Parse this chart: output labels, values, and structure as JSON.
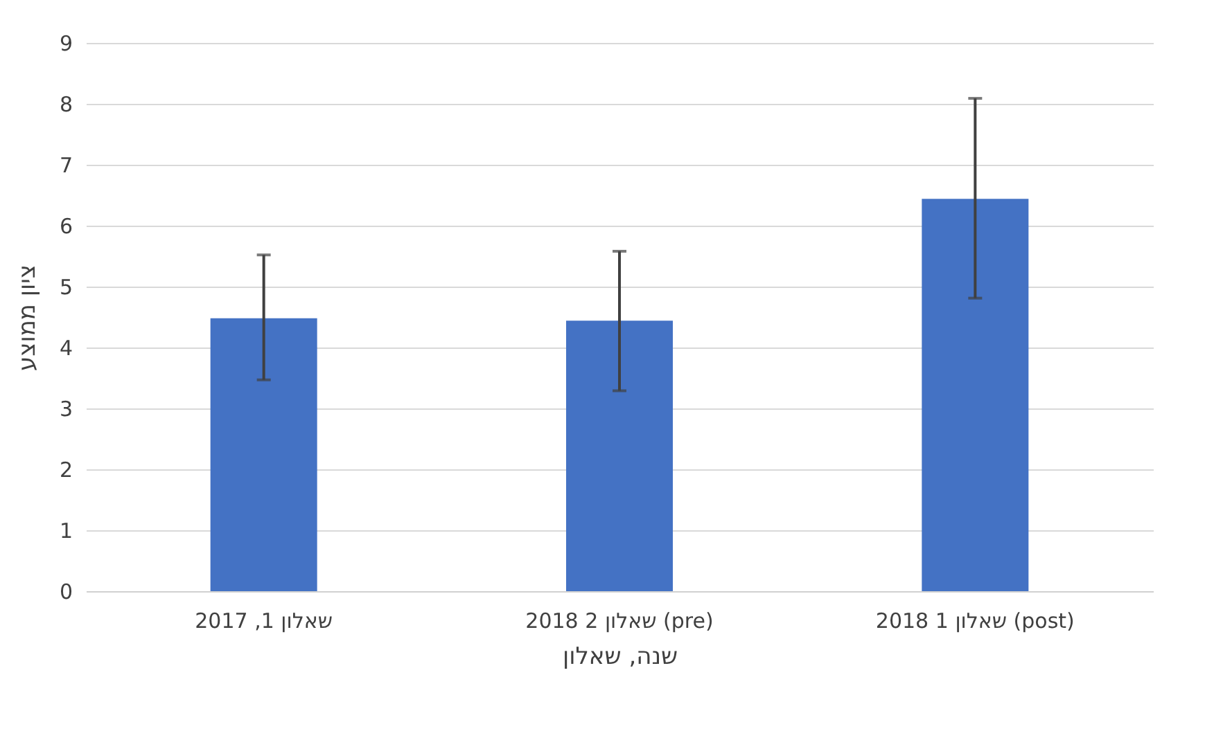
{
  "chart_data": {
    "type": "bar",
    "xlabel": "שנה, שאלון",
    "ylabel": "ציון ממוצע",
    "categories": [
      "שאלון 1, 2017",
      "שאלון 2 2018 (pre)",
      "שאלון 1 2018 (post)"
    ],
    "values": [
      4.48,
      4.44,
      6.44
    ],
    "errors": [
      [
        3.47,
        5.52
      ],
      [
        3.29,
        5.58
      ],
      [
        4.81,
        8.09
      ]
    ],
    "color": "#4472c4",
    "ylim": [
      0,
      9
    ],
    "yticks": [
      0,
      1,
      2,
      3,
      4,
      5,
      6,
      7,
      8,
      9
    ],
    "grid": "y"
  }
}
